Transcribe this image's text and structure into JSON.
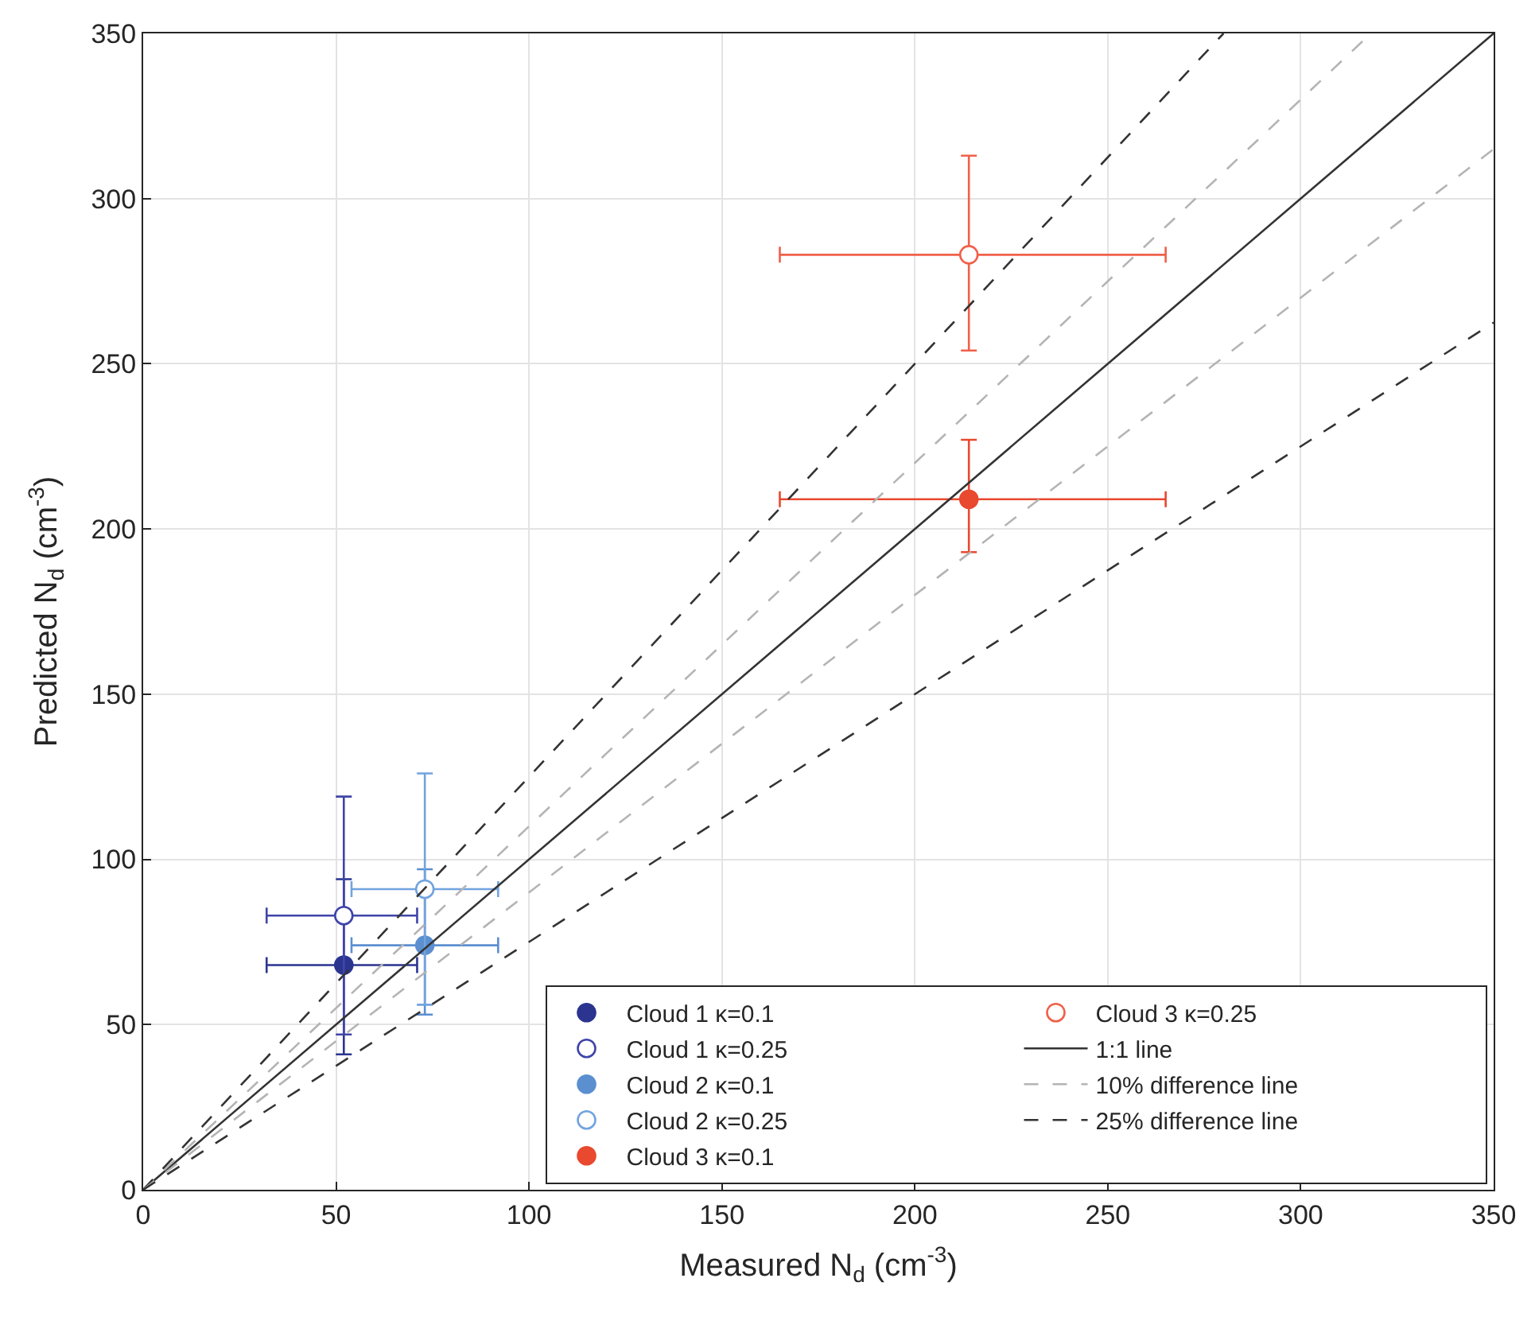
{
  "chart_data": {
    "type": "scatter",
    "xlabel": "Measured N$_{d}$ (cm$^{-3}$)",
    "ylabel": "Predicted N$_{d}$ (cm$^{-3}$)",
    "xlim": [
      0,
      350
    ],
    "xticks": [
      0,
      50,
      100,
      150,
      200,
      250,
      300,
      350
    ],
    "ylim": [
      0,
      350
    ],
    "yticks": [
      0,
      50,
      100,
      150,
      200,
      250,
      300,
      350
    ],
    "grid": true,
    "legend": "bottom right",
    "series": [
      {
        "name": "Cloud 1 κ=0.1",
        "marker": "circle",
        "color": "#2b3590",
        "x": [
          52
        ],
        "values": [
          68
        ],
        "errors": [
          [
            41,
            94
          ]
        ],
        "xerrors": [
          [
            32,
            71
          ]
        ]
      },
      {
        "name": "Cloud 1 κ=0.25",
        "marker": "circle-open",
        "color": "#3f45a8",
        "x": [
          52
        ],
        "values": [
          83
        ],
        "errors": [
          [
            47,
            119
          ]
        ],
        "xerrors": [
          [
            32,
            71
          ]
        ]
      },
      {
        "name": "Cloud 2 κ=0.1",
        "marker": "circle",
        "color": "#5b8fd0",
        "x": [
          73
        ],
        "values": [
          74
        ],
        "errors": [
          [
            53,
            97
          ]
        ],
        "xerrors": [
          [
            54,
            92
          ]
        ]
      },
      {
        "name": "Cloud 2 κ=0.25",
        "marker": "circle-open",
        "color": "#72a3de",
        "x": [
          73
        ],
        "values": [
          91
        ],
        "errors": [
          [
            56,
            126
          ]
        ],
        "xerrors": [
          [
            54,
            92
          ]
        ]
      },
      {
        "name": "Cloud 3 κ=0.1",
        "marker": "circle",
        "color": "#e8492f",
        "x": [
          214
        ],
        "values": [
          209
        ],
        "errors": [
          [
            193,
            227
          ]
        ],
        "xerrors": [
          [
            165,
            265
          ]
        ]
      },
      {
        "name": "Cloud 3 κ=0.25",
        "marker": "circle-open",
        "color": "#f0604a",
        "x": [
          214
        ],
        "values": [
          283
        ],
        "errors": [
          [
            254,
            313
          ]
        ],
        "xerrors": [
          [
            165,
            265
          ]
        ]
      },
      {
        "name": "1:1 line",
        "type": "line",
        "line_style": "solid",
        "color": "#333333",
        "x": [
          0,
          350
        ],
        "values": [
          0,
          350
        ]
      },
      {
        "name": "10% difference line",
        "type": "line",
        "line_style": "dashed",
        "color": "#b4b4b4",
        "x": [
          0,
          318.2
        ],
        "values": [
          0,
          350
        ]
      },
      {
        "name": "25% difference line",
        "type": "line",
        "line_style": "dashed",
        "color": "#333333",
        "x": [
          0,
          280
        ],
        "values": [
          0,
          350
        ]
      },
      {
        "type": "line",
        "line_style": "dashed",
        "color": "#b4b4b4",
        "x": [
          0,
          350
        ],
        "values": [
          0,
          315
        ]
      },
      {
        "type": "line",
        "line_style": "dashed",
        "color": "#333333",
        "x": [
          0,
          350
        ],
        "values": [
          0,
          262.5
        ]
      }
    ]
  }
}
